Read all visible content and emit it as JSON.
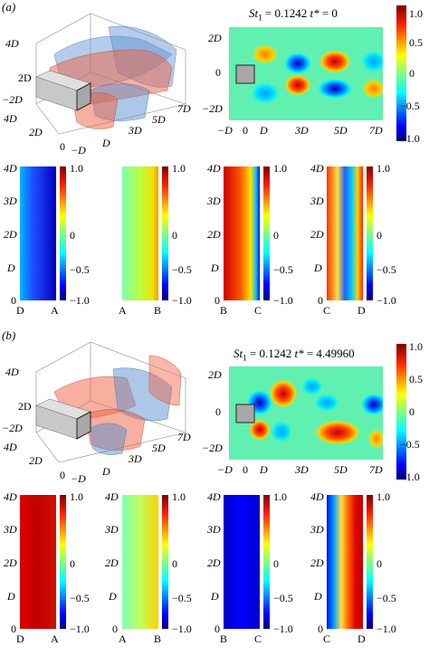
{
  "colormap": [
    "#00007f",
    "#0000ff",
    "#007fff",
    "#00ffff",
    "#7fff7f",
    "#ffff00",
    "#ff7f00",
    "#ff0000",
    "#7f0000"
  ],
  "flow_colors": {
    "positive": "#f06040",
    "negative": "#5a8fd0",
    "cylinder": "#c8c8c8"
  },
  "colorbar_ticks": [
    "1.0",
    "0.5",
    "0",
    "−0.5",
    "−1.0"
  ],
  "strip_y_ticks": [
    "4D",
    "3D",
    "2D",
    "D",
    "0"
  ],
  "panels": [
    {
      "label": "(a)",
      "title": {
        "prefix": "St",
        "sub": "1",
        "eq": " = 0.1242 ",
        "tstar": "t*",
        "value": " = 0"
      },
      "iso": {
        "y_ticks": [
          "2D",
          "0",
          "−2D"
        ],
        "z_ticks": [
          "4D",
          "2D",
          "0"
        ],
        "x_ticks": [
          "−D",
          "D",
          "3D",
          "5D",
          "7D"
        ]
      },
      "contour": {
        "y_ticks": [
          "2D",
          "0",
          "−2D"
        ],
        "x_ticks": [
          "−D",
          "0",
          "D",
          "3D",
          "5D",
          "7D"
        ]
      },
      "strips": [
        {
          "left": "D",
          "right": "A"
        },
        {
          "left": "A",
          "right": "B"
        },
        {
          "left": "B",
          "right": "C"
        },
        {
          "left": "C",
          "right": "D"
        }
      ]
    },
    {
      "label": "(b)",
      "title": {
        "prefix": "St",
        "sub": "1",
        "eq": " = 0.1242 ",
        "tstar": "t*",
        "value": " = 4.49960"
      },
      "iso": {
        "y_ticks": [
          "2D",
          "0",
          "−2D"
        ],
        "z_ticks": [
          "4D",
          "2D",
          "0"
        ],
        "x_ticks": [
          "−D",
          "D",
          "3D",
          "5D",
          "7D"
        ]
      },
      "contour": {
        "y_ticks": [
          "2D",
          "0",
          "−2D"
        ],
        "x_ticks": [
          "−D",
          "0",
          "D",
          "3D",
          "5D",
          "7D"
        ]
      },
      "strips": [
        {
          "left": "D",
          "right": "A"
        },
        {
          "left": "A",
          "right": "B"
        },
        {
          "left": "B",
          "right": "C"
        },
        {
          "left": "C",
          "right": "D"
        }
      ]
    }
  ]
}
